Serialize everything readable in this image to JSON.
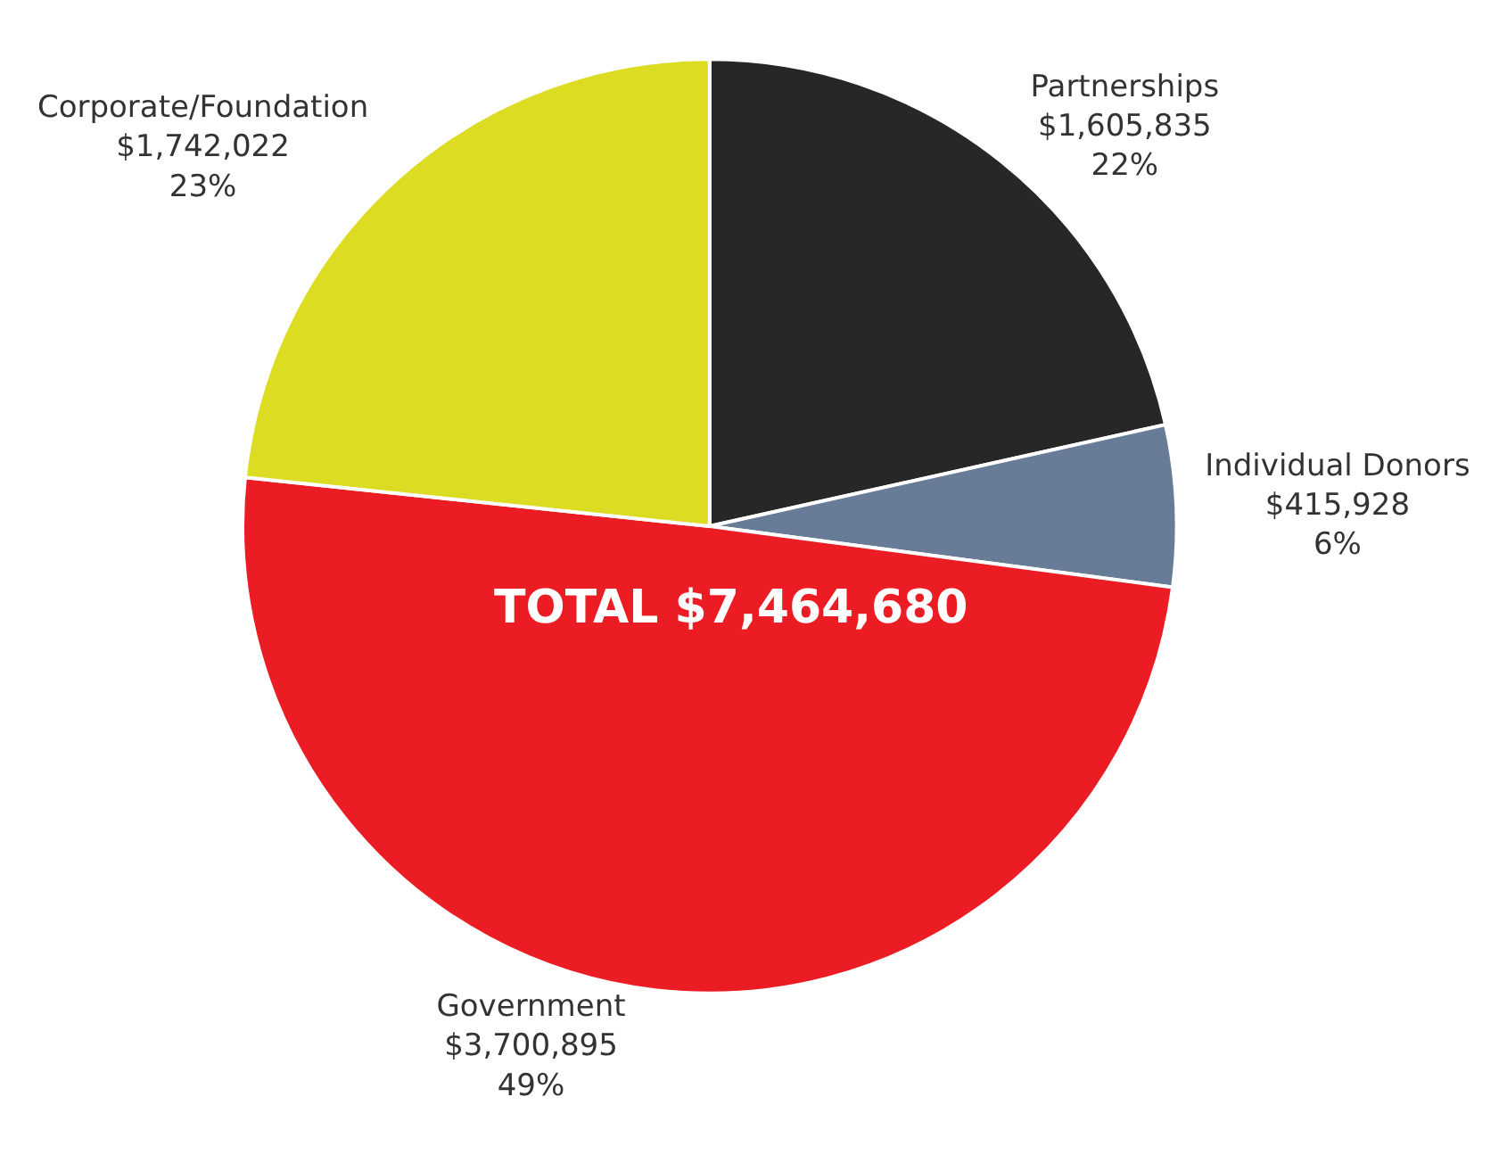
{
  "chart_data": {
    "type": "pie",
    "categories": [
      "Partnerships",
      "Individual Donors",
      "Government",
      "Corporate/Foundation"
    ],
    "values": [
      1605835,
      415928,
      3700895,
      1742022
    ],
    "value_labels": [
      "$1,605,835\n22%",
      "$415,928\n6%",
      "$3,700,895\n49%",
      "$1,742,022\n23%"
    ],
    "colors": [
      "#272826",
      "#687c98",
      "#ec1c24",
      "#dcdc22"
    ],
    "annotations": [
      "TOTAL $7,464,680"
    ],
    "legend": false
  }
}
